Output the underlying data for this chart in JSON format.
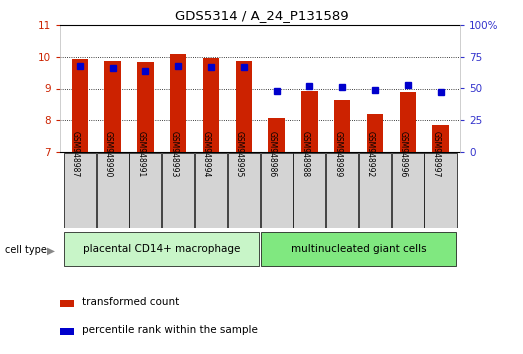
{
  "title": "GDS5314 / A_24_P131589",
  "samples": [
    "GSM948987",
    "GSM948990",
    "GSM948991",
    "GSM948993",
    "GSM948994",
    "GSM948995",
    "GSM948986",
    "GSM948988",
    "GSM948989",
    "GSM948992",
    "GSM948996",
    "GSM948997"
  ],
  "transformed_count": [
    9.92,
    9.85,
    9.82,
    10.07,
    9.95,
    9.87,
    8.08,
    8.92,
    8.63,
    8.21,
    8.88,
    7.84
  ],
  "percentile_rank": [
    68,
    66,
    64,
    68,
    67,
    67,
    48,
    52,
    51,
    49,
    53,
    47
  ],
  "cell_types": [
    {
      "label": "placental CD14+ macrophage",
      "start": 0,
      "end": 6,
      "color": "#c8f5c8"
    },
    {
      "label": "multinucleated giant cells",
      "start": 6,
      "end": 12,
      "color": "#80e880"
    }
  ],
  "ylim_left": [
    7,
    11
  ],
  "ylim_right": [
    0,
    100
  ],
  "yticks_left": [
    7,
    8,
    9,
    10,
    11
  ],
  "yticks_right": [
    0,
    25,
    50,
    75,
    100
  ],
  "ytick_right_labels": [
    "0",
    "25",
    "50",
    "75",
    "100%"
  ],
  "bar_color": "#cc2200",
  "dot_color": "#0000cc",
  "left_tick_color": "#cc2200",
  "right_tick_color": "#3333cc",
  "sample_box_color": "#d4d4d4",
  "cell_type_label": "cell type",
  "legend_items": [
    "transformed count",
    "percentile rank within the sample"
  ],
  "bar_width": 0.5
}
